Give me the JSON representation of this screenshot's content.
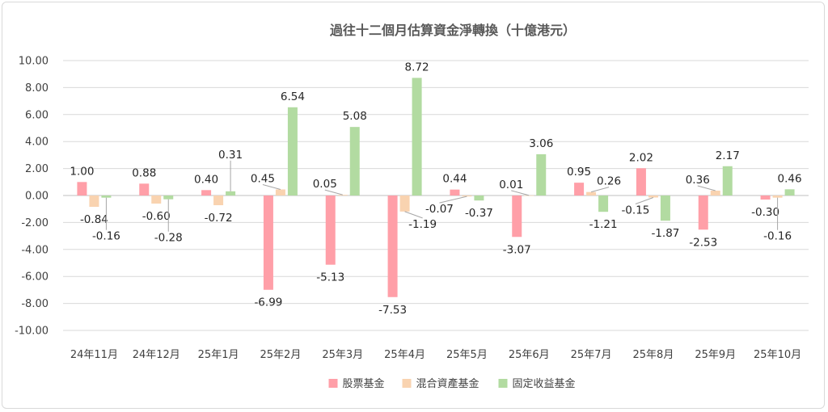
{
  "chart_data": {
    "type": "bar",
    "title": "過往十二個月估算資金淨轉換（十億港元）",
    "categories": [
      "24年11月",
      "24年12月",
      "25年1月",
      "25年2月",
      "25年3月",
      "25年4月",
      "25年5月",
      "25年6月",
      "25年7月",
      "25年8月",
      "25年9月",
      "25年10月"
    ],
    "series": [
      {
        "name": "股票基金",
        "color": "#ff9fa8",
        "values": [
          1.0,
          0.88,
          0.4,
          -6.99,
          -5.13,
          -7.53,
          0.44,
          -3.07,
          0.95,
          2.02,
          -2.53,
          -0.3
        ],
        "labels": [
          "1.00",
          "0.88",
          "0.40",
          "-6.99",
          "-5.13",
          "-7.53",
          "0.44",
          "-3.07",
          "0.95",
          "2.02",
          "-2.53",
          "-0.30"
        ]
      },
      {
        "name": "混合資產基金",
        "color": "#f9d3b0",
        "values": [
          -0.84,
          -0.6,
          -0.72,
          0.45,
          0.05,
          -1.19,
          -0.07,
          0.01,
          0.26,
          -0.15,
          0.36,
          -0.16
        ],
        "labels": [
          "-0.84",
          "-0.60",
          "-0.72",
          "0.45",
          "0.05",
          "-1.19",
          "-0.07",
          "0.01",
          "0.26",
          "-0.15",
          "0.36",
          "-0.16"
        ]
      },
      {
        "name": "固定收益基金",
        "color": "#b2dba1",
        "values": [
          -0.16,
          -0.28,
          0.31,
          6.54,
          5.08,
          8.72,
          -0.37,
          3.06,
          -1.21,
          -1.87,
          2.17,
          0.46
        ],
        "labels": [
          "-0.16",
          "-0.28",
          "0.31",
          "6.54",
          "5.08",
          "8.72",
          "-0.37",
          "3.06",
          "-1.21",
          "-1.87",
          "2.17",
          "0.46"
        ]
      }
    ],
    "ylim": [
      -10,
      10
    ],
    "yticks": [
      "10.00",
      "8.00",
      "6.00",
      "4.00",
      "2.00",
      "0.00",
      "-2.00",
      "-4.00",
      "-6.00",
      "-8.00",
      "-10.00"
    ],
    "ytick_values": [
      10,
      8,
      6,
      4,
      2,
      0,
      -2,
      -4,
      -6,
      -8,
      -10
    ],
    "grid": true,
    "legend_position": "bottom"
  }
}
